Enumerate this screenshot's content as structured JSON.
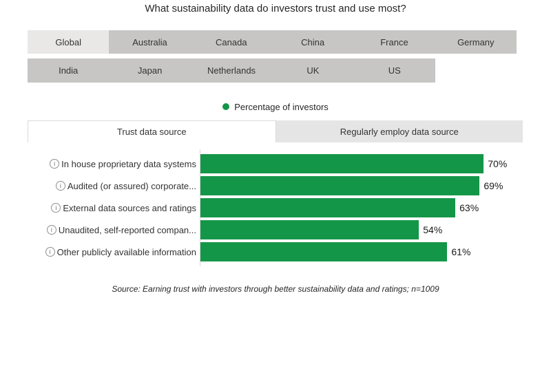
{
  "title": "What sustainability data do investors trust and use most?",
  "country_tabs": {
    "active": "Global",
    "row1": [
      {
        "label": "Global"
      },
      {
        "label": "Australia"
      },
      {
        "label": "Canada"
      },
      {
        "label": "China"
      },
      {
        "label": "France"
      },
      {
        "label": "Germany"
      }
    ],
    "row2": [
      {
        "label": "India"
      },
      {
        "label": "Japan"
      },
      {
        "label": "Netherlands"
      },
      {
        "label": "UK"
      },
      {
        "label": "US"
      }
    ]
  },
  "legend": {
    "label": "Percentage of investors",
    "marker_color": "#149648"
  },
  "metric_tabs": {
    "active": "Trust data source",
    "items": [
      {
        "label": "Trust data source"
      },
      {
        "label": "Regularly employ data source"
      }
    ]
  },
  "chart_data": {
    "type": "bar",
    "orientation": "horizontal",
    "title": "What sustainability data do investors trust and use most?",
    "series_name": "Percentage of investors",
    "categories": [
      "In house proprietary data systems",
      "Audited (or assured) corporate...",
      "External data sources and ratings",
      "Unaudited, self-reported compan...",
      "Other publicly available information"
    ],
    "values": [
      70,
      69,
      63,
      54,
      61
    ],
    "value_labels": [
      "70%",
      "69%",
      "63%",
      "54%",
      "61%"
    ],
    "xlim": [
      0,
      80
    ],
    "bar_color": "#149648",
    "grid": false,
    "legend_position": "top"
  },
  "icons": {
    "info": "i"
  },
  "source_note": "Source: Earning trust with investors through better sustainability data and ratings; n=1009"
}
